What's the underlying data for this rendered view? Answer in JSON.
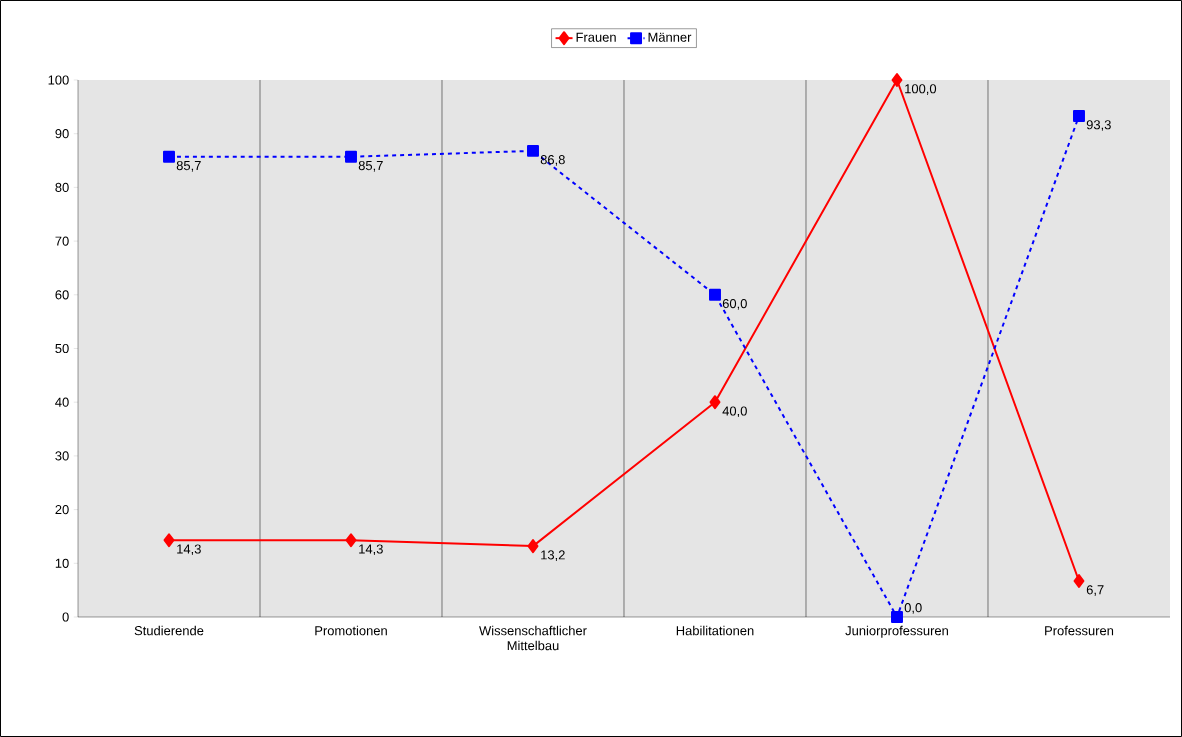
{
  "chart_data": {
    "type": "line",
    "categories": [
      "Studierende",
      "Promotionen",
      "Wissenschaftlicher Mittelbau",
      "Habilitationen",
      "Juniorprofessuren",
      "Professuren"
    ],
    "series": [
      {
        "name": "Frauen",
        "color": "#ff0000",
        "marker": "diamond",
        "line_style": "solid",
        "values": [
          14.3,
          14.3,
          13.2,
          40.0,
          100.0,
          6.7
        ],
        "value_labels": [
          "14,3",
          "14,3",
          "13,2",
          "40,0",
          "100,0",
          "6,7"
        ]
      },
      {
        "name": "Männer",
        "color": "#0000ff",
        "marker": "square",
        "line_style": "dashed",
        "values": [
          85.7,
          85.7,
          86.8,
          60.0,
          0.0,
          93.3
        ],
        "value_labels": [
          "85,7",
          "85,7",
          "86,8",
          "60,0",
          "0,0",
          "93,3"
        ]
      }
    ],
    "ylim": [
      0,
      100
    ],
    "yticks": [
      0,
      10,
      20,
      30,
      40,
      50,
      60,
      70,
      80,
      90,
      100
    ],
    "grid": "x",
    "legend": "top"
  }
}
